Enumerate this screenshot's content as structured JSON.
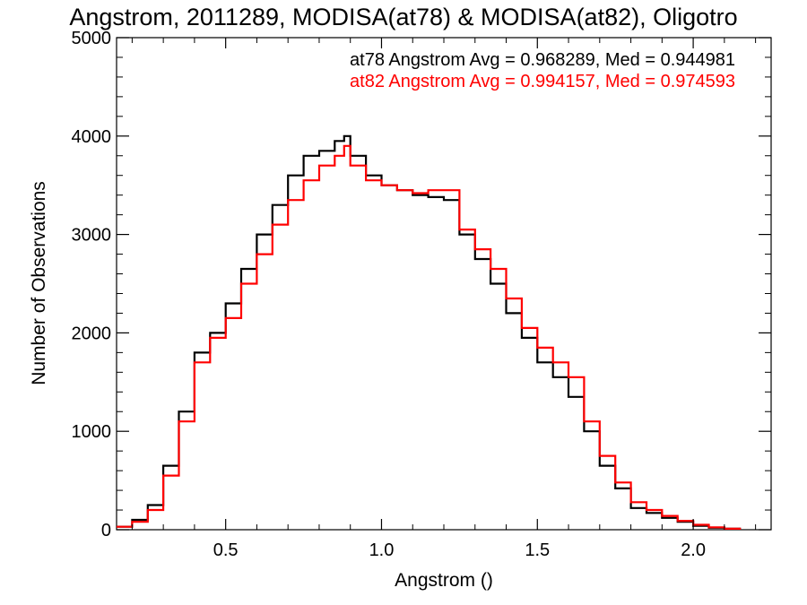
{
  "chart_data": {
    "type": "line",
    "title": "Angstrom, 2011289, MODISA(at78) & MODISA(at82), Oligotro",
    "xlabel": "Angstrom ()",
    "ylabel": "Number of Observations",
    "xlim": [
      0.15,
      2.25
    ],
    "ylim": [
      0,
      5000
    ],
    "x_ticks": [
      0.5,
      1.0,
      1.5,
      2.0
    ],
    "x_tick_labels": [
      "0.5",
      "1.0",
      "1.5",
      "2.0"
    ],
    "y_ticks": [
      0,
      1000,
      2000,
      3000,
      4000,
      5000
    ],
    "y_tick_labels": [
      "0",
      "1000",
      "2000",
      "3000",
      "4000",
      "5000"
    ],
    "grid": false,
    "legend_placement": "top-right",
    "series": [
      {
        "name": "at78 Angstrom Avg = 0.968289, Med = 0.944981",
        "color": "#000000",
        "x": [
          0.15,
          0.2,
          0.25,
          0.3,
          0.35,
          0.4,
          0.45,
          0.5,
          0.55,
          0.6,
          0.65,
          0.7,
          0.75,
          0.8,
          0.85,
          0.88,
          0.9,
          0.95,
          1.0,
          1.05,
          1.1,
          1.15,
          1.2,
          1.25,
          1.3,
          1.35,
          1.4,
          1.45,
          1.5,
          1.55,
          1.6,
          1.65,
          1.7,
          1.75,
          1.8,
          1.85,
          1.9,
          1.95,
          2.0,
          2.05,
          2.1,
          2.15
        ],
        "y": [
          30,
          100,
          250,
          650,
          1200,
          1800,
          2000,
          2300,
          2650,
          3000,
          3300,
          3600,
          3800,
          3850,
          3950,
          4000,
          3800,
          3600,
          3500,
          3450,
          3400,
          3380,
          3350,
          3000,
          2750,
          2500,
          2200,
          1950,
          1700,
          1550,
          1350,
          1000,
          650,
          420,
          220,
          170,
          120,
          80,
          40,
          20,
          10,
          0
        ]
      },
      {
        "name": "at82 Angstrom Avg = 0.994157, Med = 0.974593",
        "color": "#ff0000",
        "x": [
          0.15,
          0.2,
          0.25,
          0.3,
          0.35,
          0.4,
          0.45,
          0.5,
          0.55,
          0.6,
          0.65,
          0.7,
          0.75,
          0.8,
          0.85,
          0.88,
          0.9,
          0.95,
          1.0,
          1.05,
          1.1,
          1.15,
          1.2,
          1.25,
          1.3,
          1.35,
          1.4,
          1.45,
          1.5,
          1.55,
          1.6,
          1.65,
          1.7,
          1.75,
          1.8,
          1.85,
          1.9,
          1.95,
          2.0,
          2.05,
          2.1,
          2.15
        ],
        "y": [
          30,
          80,
          200,
          550,
          1100,
          1700,
          1950,
          2150,
          2500,
          2800,
          3100,
          3350,
          3550,
          3700,
          3800,
          3900,
          3700,
          3550,
          3500,
          3450,
          3420,
          3450,
          3450,
          3050,
          2850,
          2650,
          2350,
          2050,
          1850,
          1700,
          1550,
          1100,
          750,
          480,
          280,
          200,
          140,
          90,
          50,
          25,
          10,
          0
        ]
      }
    ]
  }
}
